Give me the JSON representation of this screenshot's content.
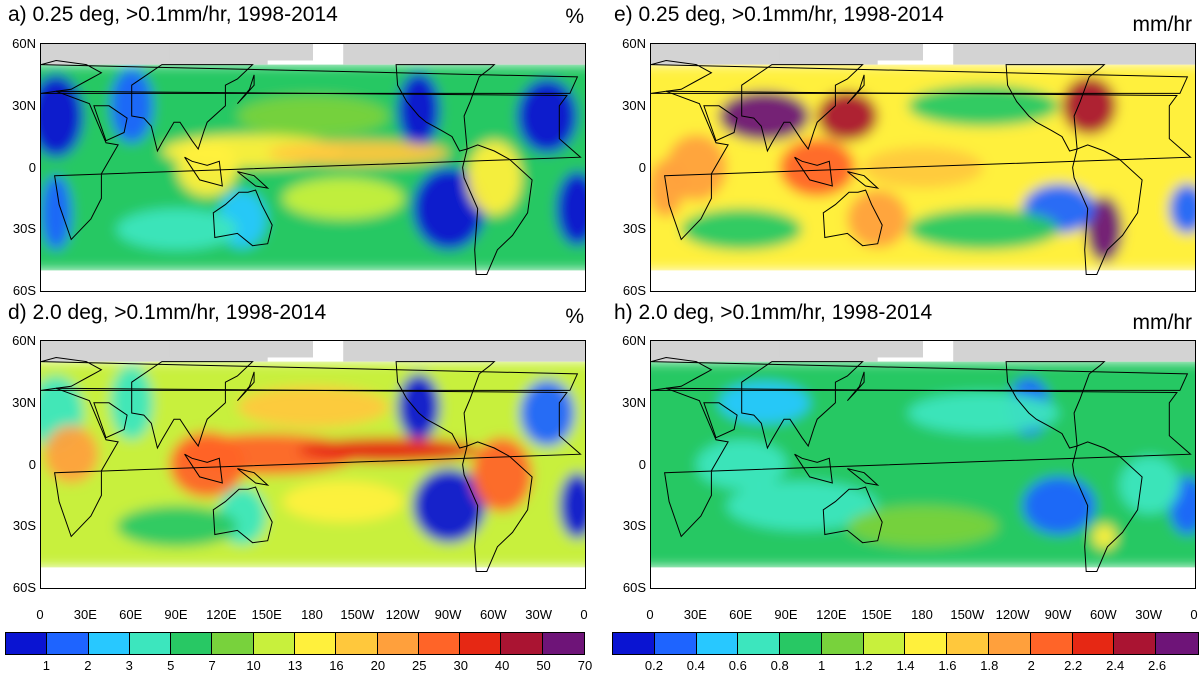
{
  "panels": {
    "a": {
      "title": "a) 0.25 deg, >0.1mm/hr, 1998-2014",
      "unit": "%"
    },
    "d": {
      "title": "d) 2.0 deg, >0.1mm/hr, 1998-2014",
      "unit": "%"
    },
    "e": {
      "title": "e) 0.25 deg, >0.1mm/hr, 1998-2014",
      "unit": "mm/hr"
    },
    "h": {
      "title": "h) 2.0 deg, >0.1mm/hr, 1998-2014",
      "unit": "mm/hr"
    }
  },
  "lat_labels": [
    "60N",
    "30N",
    "0",
    "30S",
    "60S"
  ],
  "lon_labels": [
    "0",
    "30E",
    "60E",
    "90E",
    "120E",
    "150E",
    "180",
    "150W",
    "120W",
    "90W",
    "60W",
    "30W",
    "0"
  ],
  "colorbars": {
    "left": {
      "colors": [
        "#0a14d2",
        "#1e64ff",
        "#28c8ff",
        "#3ce6be",
        "#28c864",
        "#78d23c",
        "#c8f03c",
        "#fff03c",
        "#ffc83c",
        "#ffa03c",
        "#ff6428",
        "#e62814",
        "#aa1432",
        "#6e1478"
      ],
      "labels": [
        "1",
        "2",
        "3",
        "5",
        "7",
        "10",
        "13",
        "16",
        "20",
        "25",
        "30",
        "40",
        "50",
        "70"
      ]
    },
    "right": {
      "colors": [
        "#0a14d2",
        "#1e64ff",
        "#28c8ff",
        "#3ce6be",
        "#28c864",
        "#78d23c",
        "#c8f03c",
        "#fff03c",
        "#ffc83c",
        "#ffa03c",
        "#ff6428",
        "#e62814",
        "#aa1432",
        "#6e1478"
      ],
      "labels": [
        "0.2",
        "0.4",
        "0.6",
        "0.8",
        "1",
        "1.2",
        "1.4",
        "1.6",
        "1.8",
        "2",
        "2.2",
        "2.4",
        "2.6"
      ]
    }
  },
  "colors": {
    "land_mask": "#d3d3d3",
    "coast": "#000000"
  }
}
